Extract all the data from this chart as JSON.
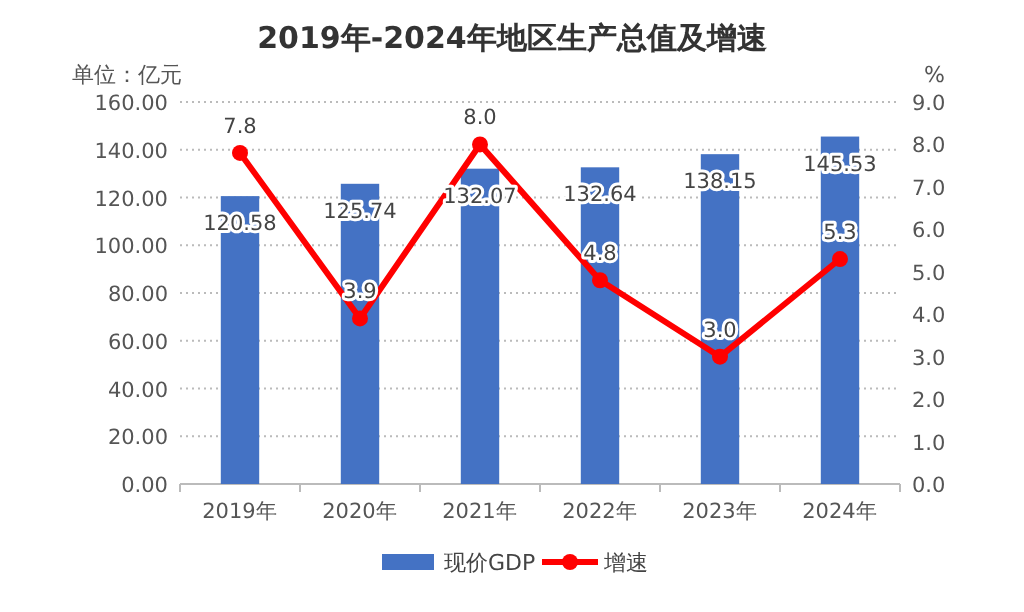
{
  "chart_data": {
    "type": "bar",
    "title": "2019年-2024年地区生产总值及增速",
    "ylabel": "单位：亿元",
    "y2label": "%",
    "categories": [
      "2019年",
      "2020年",
      "2021年",
      "2022年",
      "2023年",
      "2024年"
    ],
    "series": [
      {
        "name": "现价GDP",
        "color": "#4472c4",
        "values": [
          120.58,
          125.74,
          132.07,
          132.64,
          138.15,
          145.53
        ],
        "value_labels": [
          "120.58",
          "125.74",
          "132.07",
          "132.64",
          "138.15",
          "145.53"
        ]
      },
      {
        "name": "增速",
        "type": "line",
        "axis": "y2",
        "color": "#ff0000",
        "marker": "circle",
        "values": [
          7.8,
          3.9,
          8.0,
          4.8,
          3.0,
          5.3
        ],
        "value_labels": [
          "7.8",
          "3.9",
          "8.0",
          "4.8",
          "3.0",
          "5.3"
        ]
      }
    ],
    "ylim": [
      0,
      160
    ],
    "yticks": [
      {
        "value": 0,
        "label": "0.00"
      },
      {
        "value": 20,
        "label": "20.00"
      },
      {
        "value": 40,
        "label": "40.00"
      },
      {
        "value": 60,
        "label": "60.00"
      },
      {
        "value": 80,
        "label": "80.00"
      },
      {
        "value": 100,
        "label": "100.00"
      },
      {
        "value": 120,
        "label": "120.00"
      },
      {
        "value": 140,
        "label": "140.00"
      },
      {
        "value": 160,
        "label": "160.00"
      }
    ],
    "y2lim": [
      0,
      9
    ],
    "y2ticks": [
      {
        "value": 0,
        "label": "0.0"
      },
      {
        "value": 1,
        "label": "1.0"
      },
      {
        "value": 2,
        "label": "2.0"
      },
      {
        "value": 3,
        "label": "3.0"
      },
      {
        "value": 4,
        "label": "4.0"
      },
      {
        "value": 5,
        "label": "5.0"
      },
      {
        "value": 6,
        "label": "6.0"
      },
      {
        "value": 7,
        "label": "7.0"
      },
      {
        "value": 8,
        "label": "8.0"
      },
      {
        "value": 9,
        "label": "9.0"
      }
    ],
    "grid": "y",
    "legend": "bottom"
  }
}
